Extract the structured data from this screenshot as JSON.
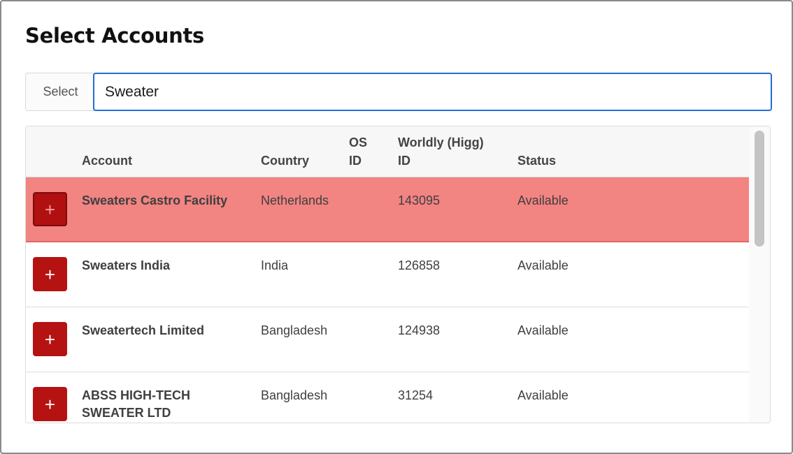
{
  "page": {
    "title": "Select Accounts"
  },
  "search": {
    "prefix_label": "Select",
    "value": "Sweater"
  },
  "table": {
    "headers": {
      "account": "Account",
      "country": "Country",
      "os_id_line1": "OS",
      "os_id_line2": "ID",
      "higg_line1": "Worldly (Higg)",
      "higg_line2": "ID",
      "status": "Status"
    },
    "rows": [
      {
        "account": "Sweaters Castro Facility",
        "country": "Netherlands",
        "os_id": "",
        "higg_id": "143095",
        "status": "Available",
        "selected": true
      },
      {
        "account": "Sweaters India",
        "country": "India",
        "os_id": "",
        "higg_id": "126858",
        "status": "Available",
        "selected": false
      },
      {
        "account": "Sweatertech Limited",
        "country": "Bangladesh",
        "os_id": "",
        "higg_id": "124938",
        "status": "Available",
        "selected": false
      },
      {
        "account": "ABSS HIGH-TECH SWEATER LTD",
        "country": "Bangladesh",
        "os_id": "",
        "higg_id": "31254",
        "status": "Available",
        "selected": false
      }
    ],
    "add_button_symbol": "+"
  },
  "colors": {
    "accent_button": "#b51212",
    "selected_row": "#f28482",
    "focus_border": "#1f6fd1"
  }
}
